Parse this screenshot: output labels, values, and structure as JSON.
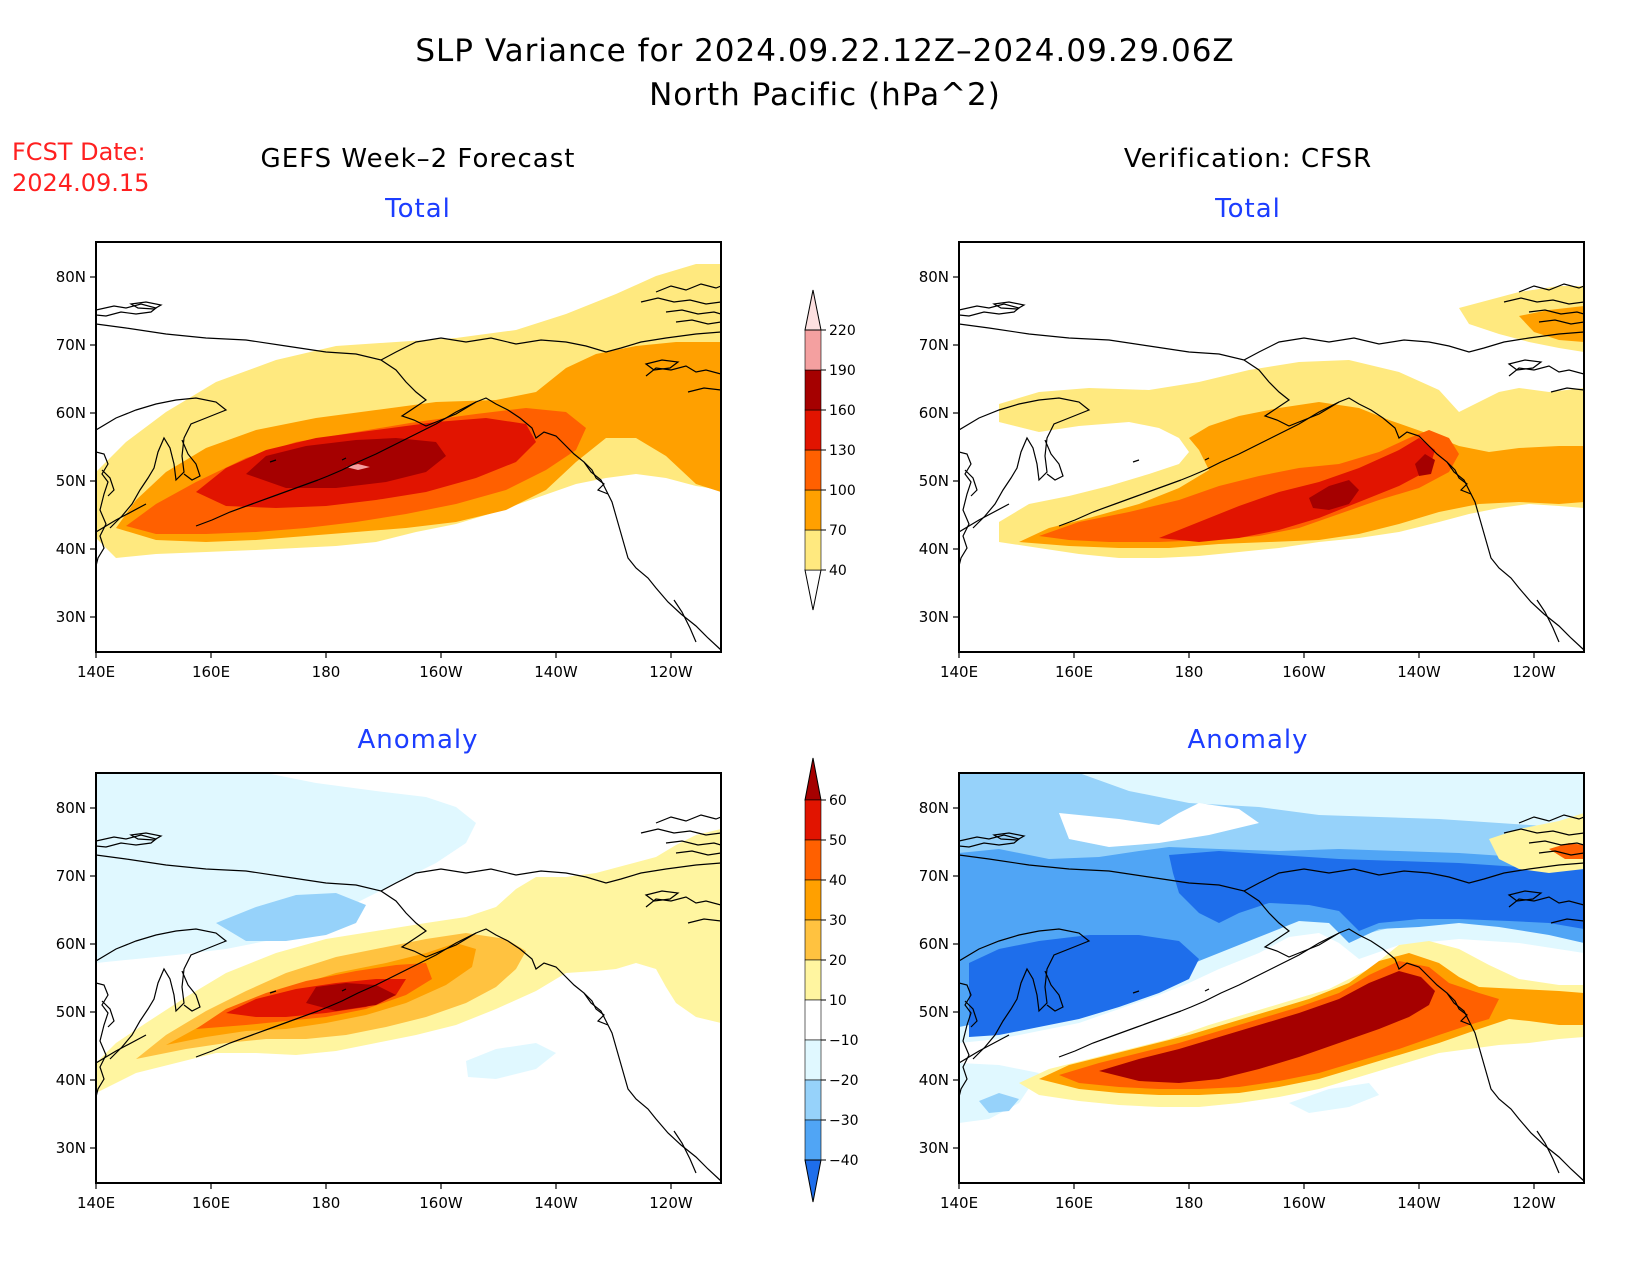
{
  "title": {
    "line1": "SLP Variance for 2024.09.22.12Z–2024.09.29.06Z",
    "line2": "North Pacific (hPa^2)"
  },
  "fcst_date": {
    "label": "FCST Date:",
    "value": "2024.09.15"
  },
  "columns": {
    "left": "GEFS Week–2 Forecast",
    "right": "Verification: CFSR"
  },
  "panel_titles": {
    "top": "Total",
    "bottom": "Anomaly"
  },
  "axes": {
    "lon_ticks": [
      "140E",
      "160E",
      "180",
      "160W",
      "140W",
      "120W"
    ],
    "lat_ticks": [
      "80N",
      "70N",
      "60N",
      "50N",
      "40N",
      "30N"
    ]
  },
  "colorbars": {
    "total": {
      "labels": [
        "40",
        "70",
        "100",
        "130",
        "160",
        "190",
        "220"
      ],
      "colors": [
        "#ffe97f",
        "#ffa000",
        "#ff6000",
        "#e11400",
        "#a50000",
        "#f4a0a0",
        "#fde0e0"
      ]
    },
    "anomaly": {
      "labels": [
        "60",
        "50",
        "40",
        "30",
        "20",
        "10",
        "−10",
        "−20",
        "−30",
        "−40"
      ],
      "colors": [
        "#a50000",
        "#e11400",
        "#ff6000",
        "#ffa000",
        "#ffc240",
        "#fff5a0",
        "#ffffff",
        "#e0f8ff",
        "#96d2fa",
        "#50a5f5",
        "#1e6eeb"
      ]
    }
  },
  "fields": {
    "forecast_total": [
      {
        "level": "40-70",
        "color": "#ffe97f"
      },
      {
        "level": "70-100",
        "color": "#ffa000"
      },
      {
        "level": "100-130",
        "color": "#ff6000"
      },
      {
        "level": "130-160",
        "color": "#e11400"
      },
      {
        "level": "160-190",
        "color": "#a50000"
      },
      {
        "level": "190-220",
        "color": "#f4a0a0"
      }
    ],
    "verification_total": [
      {
        "level": "40-70",
        "color": "#ffe97f"
      },
      {
        "level": "70-100",
        "color": "#ffa000"
      },
      {
        "level": "100-130",
        "color": "#ff6000"
      },
      {
        "level": "130-160",
        "color": "#e11400"
      },
      {
        "level": "160-190",
        "color": "#a50000"
      }
    ],
    "forecast_anomaly": [
      {
        "level": "10-20",
        "color": "#fff5a0"
      },
      {
        "level": "20-30",
        "color": "#ffc240"
      },
      {
        "level": "30-40",
        "color": "#ffa000"
      },
      {
        "level": "40-50",
        "color": "#ff6000"
      },
      {
        "level": "50-60",
        "color": "#e11400"
      },
      {
        "level": "-10 to -20",
        "color": "#e0f8ff"
      },
      {
        "level": "-20 to -30",
        "color": "#96d2fa"
      }
    ],
    "verification_anomaly": [
      {
        "level": "10-20",
        "color": "#fff5a0"
      },
      {
        "level": "30-40",
        "color": "#ffa000"
      },
      {
        "level": "40-50",
        "color": "#ff6000"
      },
      {
        "level": ">60",
        "color": "#a50000"
      },
      {
        "level": "-10 to -20",
        "color": "#e0f8ff"
      },
      {
        "level": "-20 to -30",
        "color": "#96d2fa"
      },
      {
        "level": "-30 to -40",
        "color": "#50a5f5"
      },
      {
        "level": "< -40",
        "color": "#1e6eeb"
      }
    ]
  }
}
